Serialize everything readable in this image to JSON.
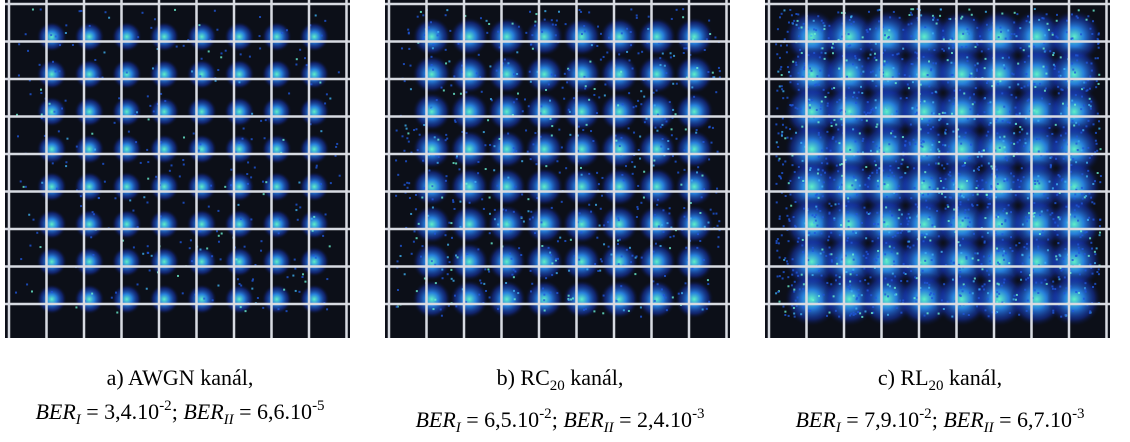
{
  "panels": [
    {
      "title": [
        {
          "t": "a) AWGN kanál,"
        }
      ],
      "ber": [
        {
          "t": "BER",
          "s": "i"
        },
        {
          "t": "I",
          "s": "sub"
        },
        {
          "t": " = 3,4.10"
        },
        {
          "t": "-2",
          "s": "sup"
        },
        {
          "t": "; "
        },
        {
          "t": "BER",
          "s": "i"
        },
        {
          "t": "II",
          "s": "sub"
        },
        {
          "t": " = 6,6.10"
        },
        {
          "t": "-5",
          "s": "sup"
        }
      ]
    },
    {
      "title": [
        {
          "t": "b) RC"
        },
        {
          "t": "20",
          "s": "subn"
        },
        {
          "t": " kanál,"
        }
      ],
      "ber": [
        {
          "t": "BER",
          "s": "i"
        },
        {
          "t": "I",
          "s": "sub"
        },
        {
          "t": " = 6,5.10"
        },
        {
          "t": "-2",
          "s": "sup"
        },
        {
          "t": "; "
        },
        {
          "t": "BER",
          "s": "i"
        },
        {
          "t": "II",
          "s": "sub"
        },
        {
          "t": " = 2,4.10"
        },
        {
          "t": "-3",
          "s": "sup"
        }
      ]
    },
    {
      "title": [
        {
          "t": "c) RL"
        },
        {
          "t": "20",
          "s": "subn"
        },
        {
          "t": " kanál,"
        }
      ],
      "ber": [
        {
          "t": "BER",
          "s": "i"
        },
        {
          "t": "I",
          "s": "sub"
        },
        {
          "t": " = 7,9.10"
        },
        {
          "t": "-2",
          "s": "sup"
        },
        {
          "t": "; "
        },
        {
          "t": "BER",
          "s": "i"
        },
        {
          "t": "II",
          "s": "sub"
        },
        {
          "t": " = 6,7.10"
        },
        {
          "t": "-3",
          "s": "sup"
        }
      ]
    }
  ]
}
